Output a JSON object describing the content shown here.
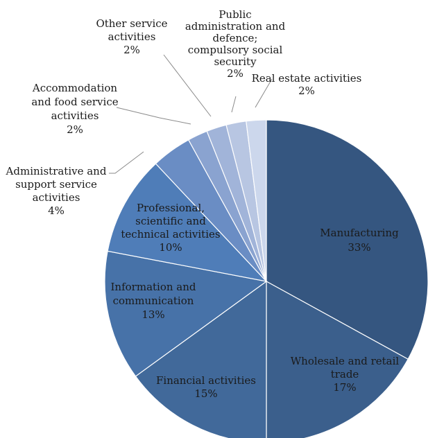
{
  "chart_data": {
    "type": "pie",
    "title": "",
    "start_angle_deg": 0,
    "direction": "clockwise",
    "slices": [
      {
        "name": "Manufacturing",
        "lines": [
          "Manufacturing"
        ],
        "value": 33,
        "label": "33%",
        "color": "#355680"
      },
      {
        "name": "Wholesale and retail trade",
        "lines": [
          "Wholesale and retail",
          "trade"
        ],
        "value": 17,
        "label": "17%",
        "color": "#3b5f8c"
      },
      {
        "name": "Financial activities",
        "lines": [
          "Financial activities"
        ],
        "value": 15,
        "label": "15%",
        "color": "#41699a"
      },
      {
        "name": "Information and communication",
        "lines": [
          "Information and",
          "communication"
        ],
        "value": 13,
        "label": "13%",
        "color": "#4772a8"
      },
      {
        "name": "Professional, scientific and technical activities",
        "lines": [
          "Professional,",
          "scientific and",
          "technical activities"
        ],
        "value": 10,
        "label": "10%",
        "color": "#4f7db8"
      },
      {
        "name": "Administrative and support service activities",
        "lines": [
          "Administrative and",
          "support service",
          "activities"
        ],
        "value": 4,
        "label": "4%",
        "color": "#6a8dc4"
      },
      {
        "name": "Accommodation and food service activities",
        "lines": [
          "Accommodation",
          "and food service",
          "activities"
        ],
        "value": 2,
        "label": "2%",
        "color": "#8aa3d0"
      },
      {
        "name": "Other service activities",
        "lines": [
          "Other service",
          "activities"
        ],
        "value": 2,
        "label": "2%",
        "color": "#a1b4d9"
      },
      {
        "name": "Public administration and defence; compulsory social security",
        "lines": [
          "Public",
          "administration and",
          "defence;",
          "compulsory social",
          "security"
        ],
        "value": 2,
        "label": "2%",
        "color": "#b8c6e2"
      },
      {
        "name": "Real estate activities",
        "lines": [
          "Real estate activities"
        ],
        "value": 2,
        "label": "2%",
        "color": "#ccd7ec"
      }
    ],
    "legend": "none"
  }
}
